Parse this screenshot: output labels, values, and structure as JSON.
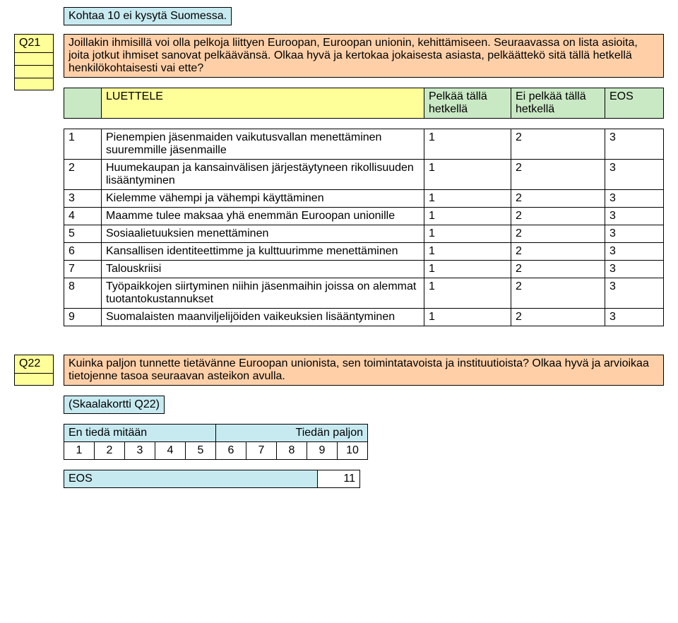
{
  "note_box": "Kohtaa 10 ei kysytä Suomessa.",
  "q21": {
    "label": "Q21",
    "intro": "Joillakin ihmisillä voi olla pelkoja liittyen Euroopan, Euroopan unionin, kehittämiseen. Seuraavassa on lista asioita, joita jotkut ihmiset sanovat pelkäävänsä. Olkaa hyvä ja kertokaa jokaisesta asiasta, pelkäättekö sitä tällä hetkellä henkilökohtaisesti vai ette?",
    "luettele": "LUETTELE",
    "col1": "Pelkää tällä hetkellä",
    "col2": "Ei pelkää tällä hetkellä",
    "col3": "EOS",
    "items": [
      {
        "n": "1",
        "text": "Pienempien jäsenmaiden vaikutusvallan menettäminen suuremmille jäsenmaille",
        "v": [
          "1",
          "2",
          "3"
        ]
      },
      {
        "n": "2",
        "text": "Huumekaupan ja kansainvälisen järjestäytyneen rikollisuuden lisääntyminen",
        "v": [
          "1",
          "2",
          "3"
        ]
      },
      {
        "n": "3",
        "text": "Kielemme vähempi ja vähempi käyttäminen",
        "v": [
          "1",
          "2",
          "3"
        ]
      },
      {
        "n": "4",
        "text": "Maamme tulee maksaa yhä enemmän Euroopan unionille",
        "v": [
          "1",
          "2",
          "3"
        ]
      },
      {
        "n": "5",
        "text": "Sosiaalietuuksien menettäminen",
        "v": [
          "1",
          "2",
          "3"
        ]
      },
      {
        "n": "6",
        "text": "Kansallisen identiteettimme ja kulttuurimme menettäminen",
        "v": [
          "1",
          "2",
          "3"
        ]
      },
      {
        "n": "7",
        "text": "Talouskriisi",
        "v": [
          "1",
          "2",
          "3"
        ]
      },
      {
        "n": "8",
        "text": "Työpaikkojen siirtyminen niihin jäsenmaihin joissa on alemmat tuotantokustannukset",
        "v": [
          "1",
          "2",
          "3"
        ]
      },
      {
        "n": "9",
        "text": "Suomalaisten maanviljelijöiden vaikeuksien lisääntyminen",
        "v": [
          "1",
          "2",
          "3"
        ]
      }
    ]
  },
  "q22": {
    "label": "Q22",
    "intro": "Kuinka paljon tunnette tietävänne Euroopan unionista, sen toimintatavoista ja instituutioista? Olkaa hyvä ja arvioikaa tietojenne tasoa seuraavan asteikon avulla.",
    "card": "(Skaalakortti Q22)",
    "scale_left": "En tiedä mitään",
    "scale_right": "Tiedän paljon",
    "scale": [
      "1",
      "2",
      "3",
      "4",
      "5",
      "6",
      "7",
      "8",
      "9",
      "10"
    ],
    "eos_label": "EOS",
    "eos_value": "11"
  },
  "colors": {
    "blue": "#c7eaf1",
    "orange": "#ffd0a8",
    "yellow": "#ffff99",
    "green": "#c9e8c4",
    "border": "#000000",
    "background": "#ffffff"
  }
}
